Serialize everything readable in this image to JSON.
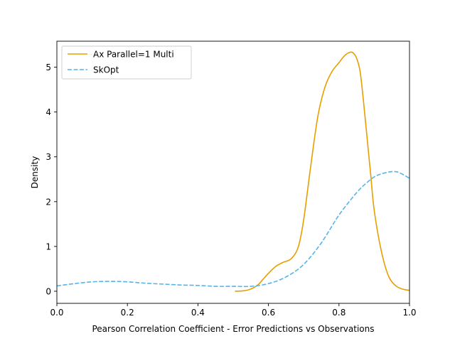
{
  "chart_data": {
    "type": "line",
    "xlabel": "Pearson Correlation Coefficient - Error Predictions vs Observations",
    "ylabel": "Density",
    "xlim": [
      0.0,
      1.0
    ],
    "ylim": [
      -0.27,
      5.58
    ],
    "xticks": [
      0.0,
      0.2,
      0.4,
      0.6,
      0.8,
      1.0
    ],
    "xtick_labels": [
      "0.0",
      "0.2",
      "0.4",
      "0.6",
      "0.8",
      "1.0"
    ],
    "yticks": [
      0,
      1,
      2,
      3,
      4,
      5
    ],
    "ytick_labels": [
      "0",
      "1",
      "2",
      "3",
      "4",
      "5"
    ],
    "grid": false,
    "legend_position": "upper-left",
    "series": [
      {
        "name": "Ax Parallel=1 Multi",
        "color": "#E69F00",
        "style": "solid",
        "x": [
          0.505,
          0.53,
          0.55,
          0.57,
          0.585,
          0.6,
          0.62,
          0.64,
          0.665,
          0.685,
          0.7,
          0.72,
          0.74,
          0.76,
          0.78,
          0.8,
          0.815,
          0.83,
          0.84,
          0.85,
          0.86,
          0.87,
          0.88,
          0.89,
          0.9,
          0.92,
          0.94,
          0.96,
          0.98,
          1.0
        ],
        "y": [
          0.0,
          0.01,
          0.05,
          0.14,
          0.27,
          0.4,
          0.55,
          0.64,
          0.73,
          1.0,
          1.6,
          2.8,
          3.9,
          4.55,
          4.9,
          5.1,
          5.25,
          5.33,
          5.32,
          5.2,
          4.9,
          4.2,
          3.4,
          2.6,
          1.8,
          0.9,
          0.35,
          0.13,
          0.05,
          0.02
        ]
      },
      {
        "name": "SkOpt",
        "color": "#56B4E9",
        "style": "dashed",
        "x": [
          0.0,
          0.05,
          0.1,
          0.15,
          0.2,
          0.25,
          0.3,
          0.35,
          0.4,
          0.45,
          0.5,
          0.55,
          0.6,
          0.65,
          0.7,
          0.75,
          0.8,
          0.85,
          0.88,
          0.9,
          0.92,
          0.95,
          0.97,
          1.0
        ],
        "y": [
          0.12,
          0.17,
          0.21,
          0.22,
          0.21,
          0.18,
          0.16,
          0.14,
          0.13,
          0.11,
          0.11,
          0.11,
          0.17,
          0.32,
          0.6,
          1.08,
          1.7,
          2.2,
          2.43,
          2.55,
          2.62,
          2.67,
          2.65,
          2.52
        ]
      }
    ]
  }
}
